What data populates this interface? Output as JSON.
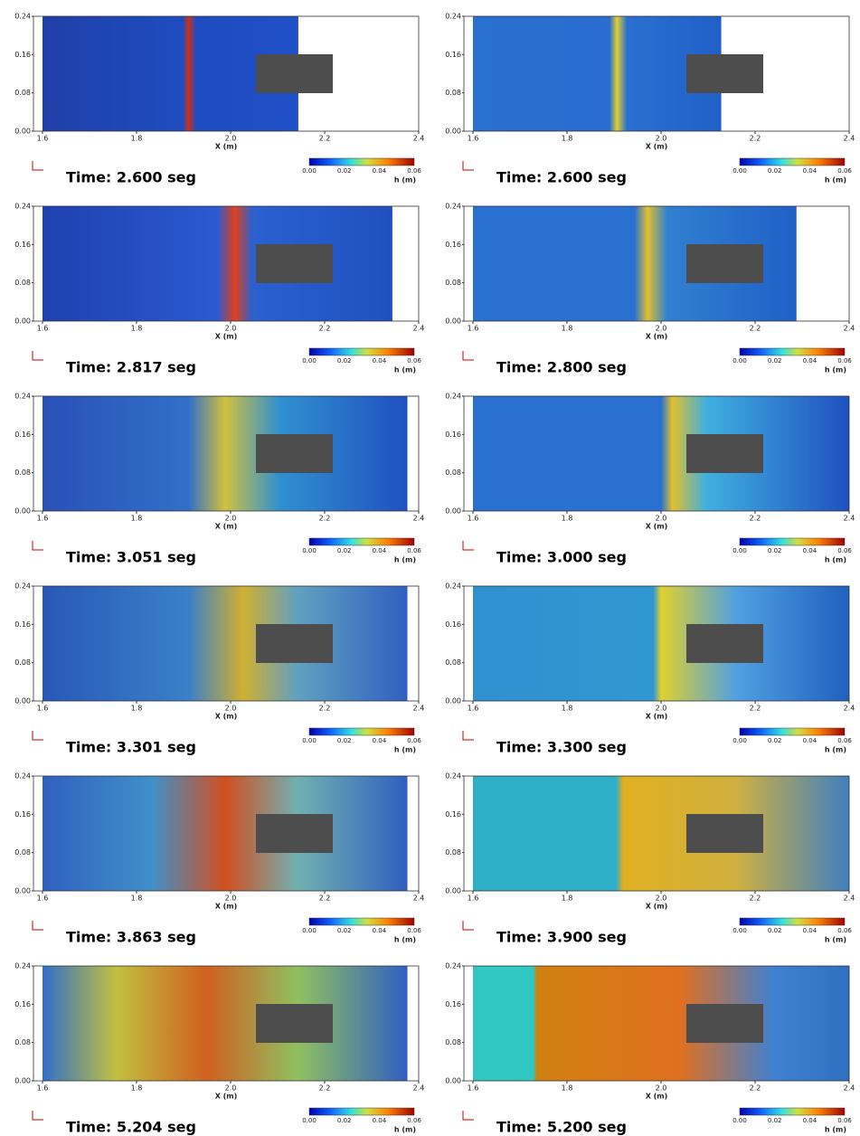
{
  "axes": {
    "y_ticks": [
      "0.24",
      "0.16",
      "0.08",
      "0.00"
    ],
    "x_ticks": [
      "1.6",
      "1.8",
      "2.0",
      "2.2",
      "2.4"
    ],
    "x_label": "X (m)",
    "colorbar_ticks": [
      "0.00",
      "0.02",
      "0.04",
      "0.06"
    ],
    "colorbar_label": "h (m)"
  },
  "panels": [
    {
      "time": "Time: 2.600 seg"
    },
    {
      "time": "Time: 2.600 seg"
    },
    {
      "time": "Time: 2.817 seg"
    },
    {
      "time": "Time: 2.800 seg"
    },
    {
      "time": "Time: 3.051 seg"
    },
    {
      "time": "Time: 3.000 seg"
    },
    {
      "time": "Time: 3.301 seg"
    },
    {
      "time": "Time: 3.300 seg"
    },
    {
      "time": "Time: 3.863 seg"
    },
    {
      "time": "Time: 3.900 seg"
    },
    {
      "time": "Time: 5.204 seg"
    },
    {
      "time": "Time: 5.200 seg"
    }
  ]
}
